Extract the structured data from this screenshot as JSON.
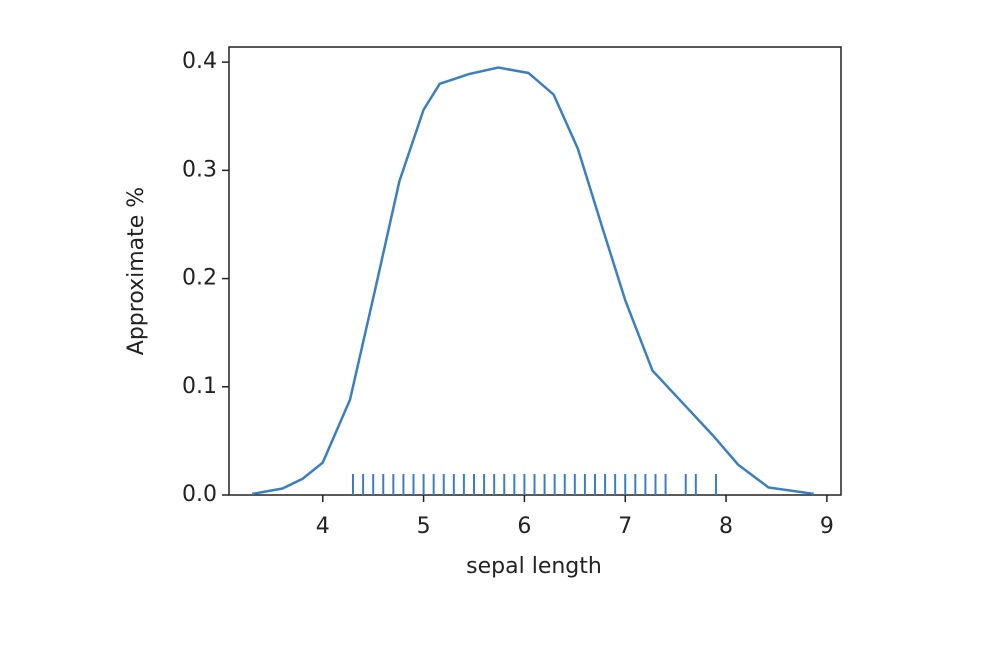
{
  "chart_data": {
    "type": "kde",
    "xlabel": "sepal length",
    "ylabel": "Approximate %",
    "x": [
      3.3,
      3.6,
      3.8,
      4.0,
      4.27,
      4.52,
      4.76,
      5.0,
      5.16,
      5.45,
      5.74,
      6.04,
      6.29,
      6.53,
      6.78,
      7.0,
      7.27,
      7.62,
      7.87,
      8.12,
      8.42,
      8.87
    ],
    "values": [
      0.001,
      0.006,
      0.015,
      0.03,
      0.088,
      0.19,
      0.29,
      0.356,
      0.38,
      0.389,
      0.395,
      0.39,
      0.37,
      0.32,
      0.245,
      0.18,
      0.115,
      0.08,
      0.055,
      0.028,
      0.007,
      0.001
    ],
    "rug": [
      4.3,
      4.4,
      4.5,
      4.6,
      4.7,
      4.8,
      4.9,
      5.0,
      5.1,
      5.2,
      5.3,
      5.4,
      5.5,
      5.6,
      5.7,
      5.8,
      5.9,
      6.0,
      6.1,
      6.2,
      6.3,
      6.4,
      6.5,
      6.6,
      6.7,
      6.8,
      6.9,
      7.0,
      7.1,
      7.2,
      7.3,
      7.4,
      7.6,
      7.7,
      7.9
    ],
    "color": "#3a7fc1",
    "xlim": [
      3.07,
      9.14
    ],
    "xticks": [
      4,
      5,
      6,
      7,
      8,
      9
    ],
    "ylim": [
      0,
      0.414
    ],
    "yticks": [
      {
        "value": 0,
        "label": "0.0"
      },
      0.1,
      0.2,
      0.3,
      0.4
    ]
  }
}
